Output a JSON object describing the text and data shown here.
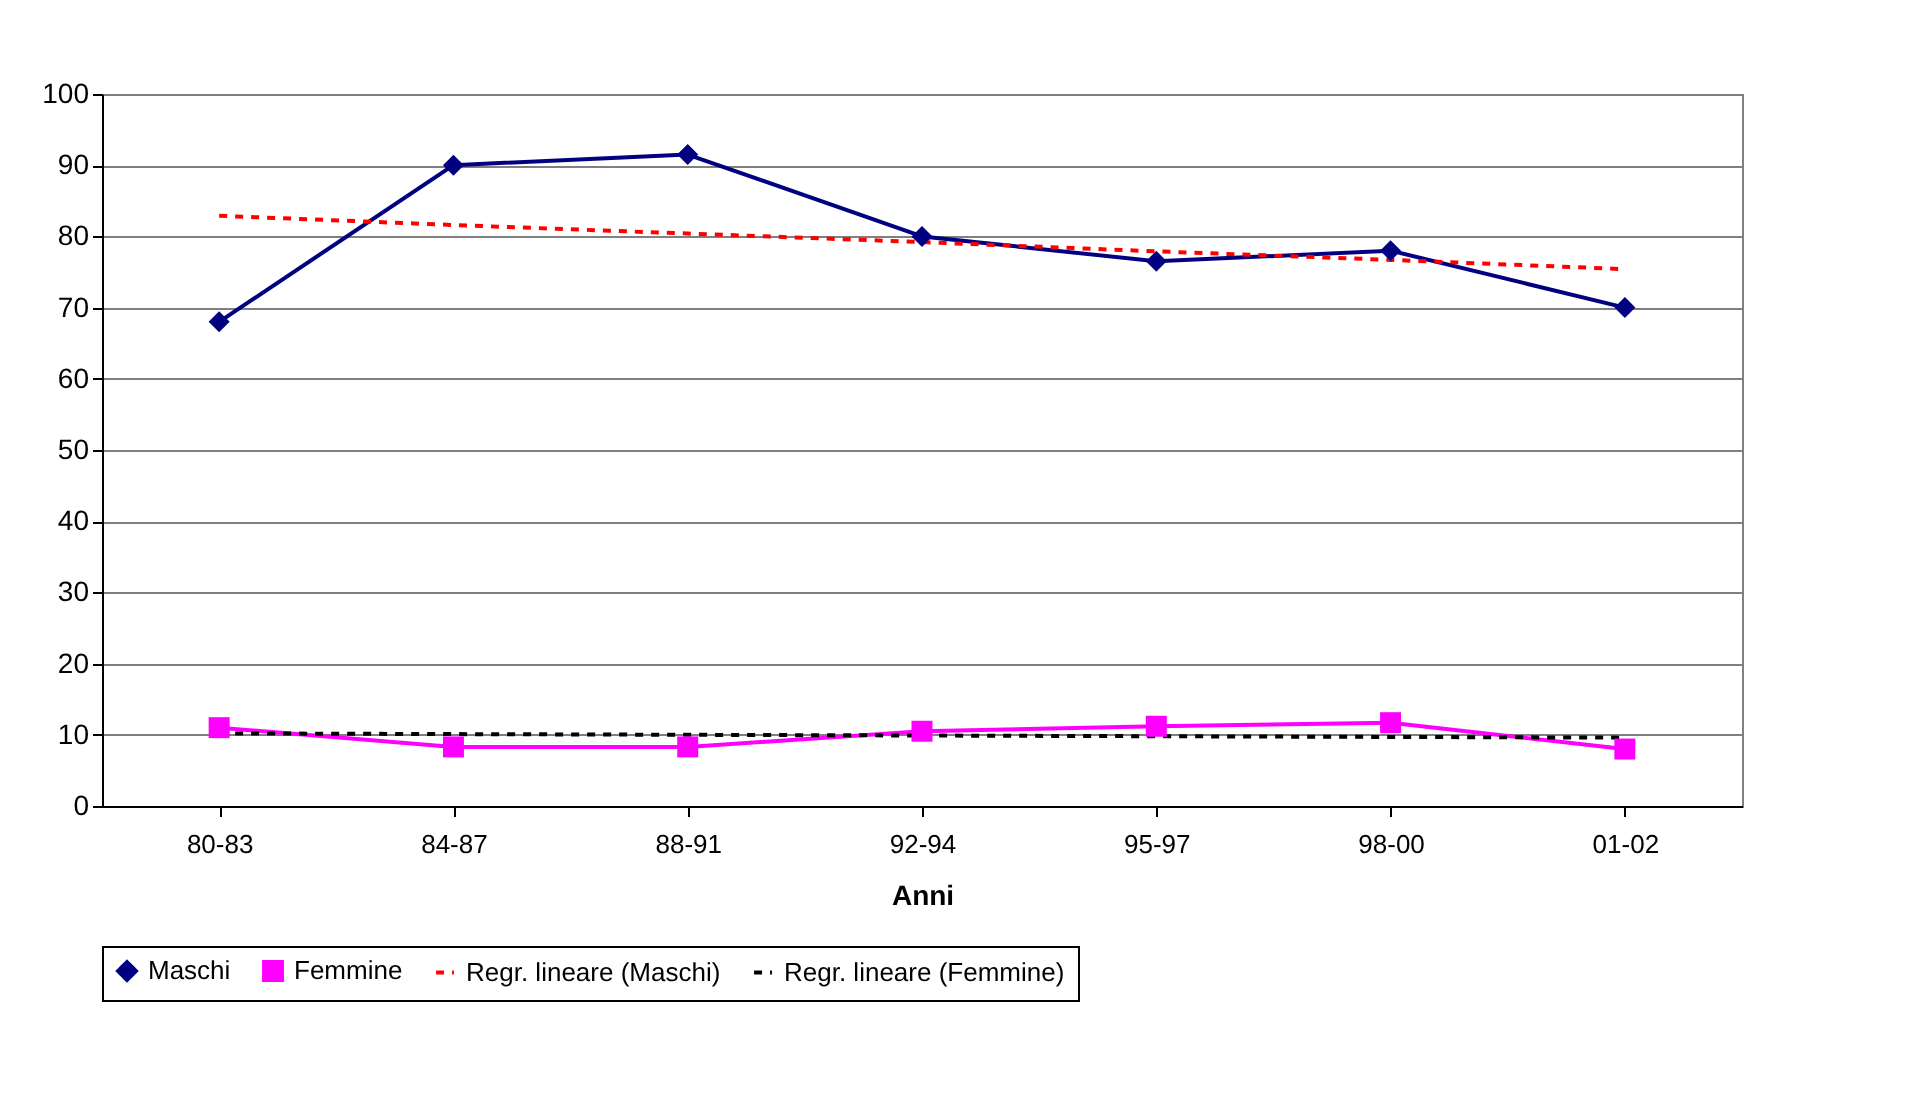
{
  "chart_data": {
    "type": "line",
    "xlabel": "Anni",
    "categories": [
      "80-83",
      "84-87",
      "88-91",
      "92-94",
      "95-97",
      "98-00",
      "01-02"
    ],
    "series": [
      {
        "name": "Maschi",
        "color": "#000080",
        "marker": "diamond",
        "line_style": "solid",
        "values": [
          68,
          90,
          91.5,
          80,
          76.5,
          78,
          70
        ]
      },
      {
        "name": "Femmine",
        "color": "#ff00ff",
        "marker": "square",
        "line_style": "solid",
        "values": [
          11,
          8.3,
          8.3,
          10.5,
          11.2,
          11.7,
          8
        ]
      },
      {
        "name": "Regr. lineare (Maschi)",
        "color": "#ff0000",
        "marker": "none",
        "line_style": "dashed",
        "values": [
          82.9,
          81.6,
          80.4,
          79.2,
          77.9,
          76.7,
          75.4
        ]
      },
      {
        "name": "Regr. lineare (Femmine)",
        "color": "#000000",
        "marker": "none",
        "line_style": "dashed",
        "values": [
          10.2,
          10.1,
          10.0,
          9.9,
          9.8,
          9.7,
          9.6
        ]
      }
    ],
    "ylim": [
      0,
      100
    ],
    "yticks": [
      0,
      10,
      20,
      30,
      40,
      50,
      60,
      70,
      80,
      90,
      100
    ],
    "grid": "y",
    "legend": "bottom"
  }
}
